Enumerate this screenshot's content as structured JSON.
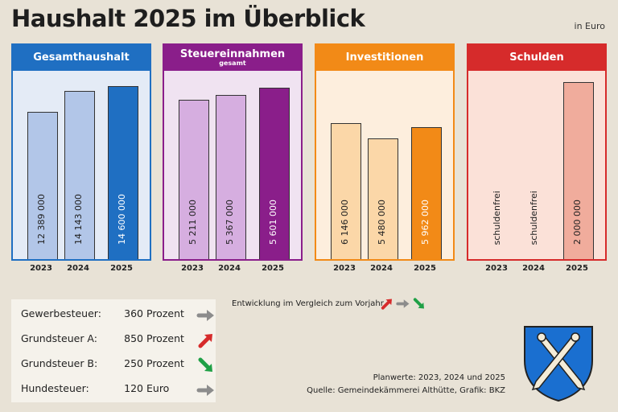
{
  "title": "Haushalt 2025 im Überblick",
  "unit_note": "in Euro",
  "chart_data": [
    {
      "type": "bar",
      "title": "Gesamthaushalt",
      "subtitle": "",
      "categories": [
        "2023",
        "2024",
        "2025"
      ],
      "values": [
        12389000,
        14143000,
        14600000
      ],
      "value_labels": [
        "12 389 000",
        "14 143 000",
        "14 600 000"
      ],
      "colors": [
        "#b2c6e8",
        "#b2c6e8",
        "#1f6fc2"
      ],
      "accent": "#1f6fc2",
      "panel_bg": "#e4ebf6",
      "ylim": [
        0,
        16000000
      ]
    },
    {
      "type": "bar",
      "title": "Steuereinnahmen",
      "subtitle": "gesamt",
      "categories": [
        "2023",
        "2024",
        "2025"
      ],
      "values": [
        5211000,
        5367000,
        5601000
      ],
      "value_labels": [
        "5 211 000",
        "5 367 000",
        "5 601 000"
      ],
      "colors": [
        "#d6aee0",
        "#d6aee0",
        "#8a1e8a"
      ],
      "accent": "#8a1e8a",
      "panel_bg": "#f0e3f1",
      "ylim": [
        0,
        6200000
      ]
    },
    {
      "type": "bar",
      "title": "Investitionen",
      "subtitle": "",
      "categories": [
        "2023",
        "2024",
        "2025"
      ],
      "values": [
        6146000,
        5480000,
        5962000
      ],
      "value_labels": [
        "6 146 000",
        "5 480 000",
        "5 962 000"
      ],
      "colors": [
        "#fbd7a8",
        "#fbd7a8",
        "#f28a17"
      ],
      "accent": "#f28a17",
      "panel_bg": "#fdeedd",
      "ylim": [
        0,
        8600000
      ]
    },
    {
      "type": "bar",
      "title": "Schulden",
      "subtitle": "",
      "categories": [
        "2023",
        "2024",
        "2025"
      ],
      "values": [
        0,
        0,
        2000000
      ],
      "value_labels": [
        "schuldenfrei",
        "schuldenfrei",
        "2 000 000"
      ],
      "colors": [
        "#f0ac9c",
        "#f0ac9c",
        "#f0ac9c"
      ],
      "accent": "#d62b2b",
      "panel_bg": "#fbe1d8",
      "ylim": [
        0,
        2150000
      ]
    }
  ],
  "taxes": [
    {
      "name": "Gewerbesteuer:",
      "value": "360",
      "unit": "Prozent",
      "trend": "flat"
    },
    {
      "name": "Grundsteuer A:",
      "value": "850",
      "unit": "Prozent",
      "trend": "up"
    },
    {
      "name": "Grundsteuer B:",
      "value": "250",
      "unit": "Prozent",
      "trend": "down"
    },
    {
      "name": "Hundesteuer:",
      "value": "120",
      "unit": "Euro",
      "trend": "flat"
    }
  ],
  "trend_colors": {
    "up": "#d62b2b",
    "flat": "#8c8c8c",
    "down": "#1fa046"
  },
  "legend_text": "Entwicklung im Vergleich zum Vorjahr",
  "footnote_plan": "Planwerte: 2023, 2024 und 2025",
  "footnote_source": "Quelle: Gemeindekämmerei Althütte, Grafik: BKZ"
}
